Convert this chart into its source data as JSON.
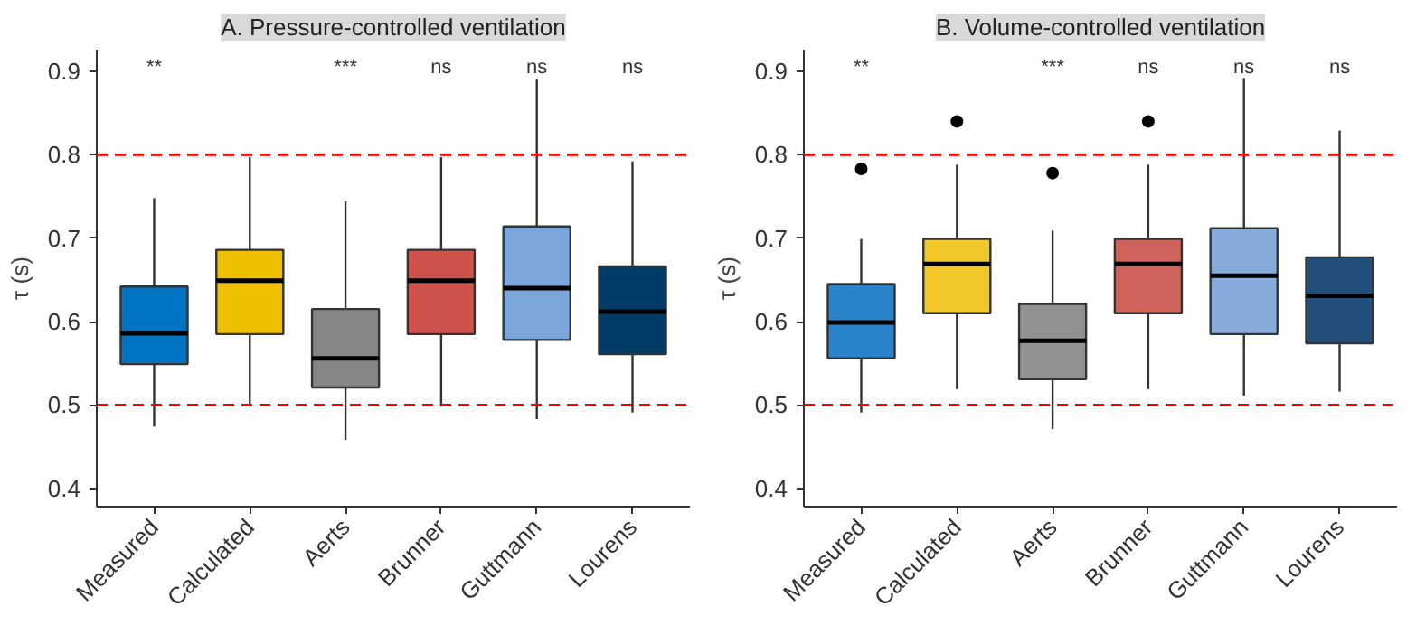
{
  "chart_data": [
    {
      "type": "box",
      "title": "A. Pressure-controlled ventilation",
      "ylabel": "τ (s)",
      "categories": [
        "Measured",
        "Calculated",
        "Aerts",
        "Brunner",
        "Guttmann",
        "Lourens"
      ],
      "colors": [
        "#0073c2",
        "#efc000",
        "#868686",
        "#cd534c",
        "#7aa6dc",
        "#003c67"
      ],
      "boxes": [
        {
          "low": 0.474,
          "q1": 0.549,
          "median": 0.586,
          "q3": 0.642,
          "high": 0.748
        },
        {
          "low": 0.498,
          "q1": 0.585,
          "median": 0.649,
          "q3": 0.686,
          "high": 0.797
        },
        {
          "low": 0.458,
          "q1": 0.521,
          "median": 0.556,
          "q3": 0.615,
          "high": 0.744
        },
        {
          "low": 0.498,
          "q1": 0.585,
          "median": 0.649,
          "q3": 0.686,
          "high": 0.797
        },
        {
          "low": 0.483,
          "q1": 0.578,
          "median": 0.64,
          "q3": 0.714,
          "high": 0.89
        },
        {
          "low": 0.491,
          "q1": 0.561,
          "median": 0.612,
          "q3": 0.666,
          "high": 0.792
        }
      ],
      "ylim": [
        0.378,
        0.926
      ],
      "yticks": [
        0.4,
        0.5,
        0.6,
        0.7,
        0.8,
        0.9
      ],
      "ref_lines": [
        {
          "axis": "y",
          "value": 0.5,
          "color": "#ff0000",
          "line_style": "dashed"
        },
        {
          "axis": "y",
          "value": 0.8,
          "color": "#ff0000",
          "line_style": "dashed"
        }
      ],
      "annotations": [
        "**",
        "***",
        "ns",
        "ns",
        "ns"
      ],
      "grid": false
    },
    {
      "type": "box",
      "title": "B. Volume-controlled ventilation",
      "ylabel": "τ (s)",
      "categories": [
        "Measured",
        "Calculated",
        "Aerts",
        "Brunner",
        "Guttmann",
        "Lourens"
      ],
      "colors": [
        "#2a84cc",
        "#f2c72a",
        "#929292",
        "#d2625c",
        "#87acdb",
        "#22507a"
      ],
      "boxes": [
        {
          "low": 0.491,
          "q1": 0.556,
          "median": 0.599,
          "q3": 0.645,
          "high": 0.699,
          "outliers": [
            0.783
          ]
        },
        {
          "low": 0.519,
          "q1": 0.61,
          "median": 0.669,
          "q3": 0.699,
          "high": 0.788,
          "outliers": [
            0.84
          ]
        },
        {
          "low": 0.471,
          "q1": 0.531,
          "median": 0.577,
          "q3": 0.621,
          "high": 0.709,
          "outliers": [
            0.778
          ]
        },
        {
          "low": 0.519,
          "q1": 0.61,
          "median": 0.669,
          "q3": 0.699,
          "high": 0.788,
          "outliers": [
            0.84
          ]
        },
        {
          "low": 0.511,
          "q1": 0.585,
          "median": 0.655,
          "q3": 0.712,
          "high": 0.892
        },
        {
          "low": 0.516,
          "q1": 0.574,
          "median": 0.631,
          "q3": 0.677,
          "high": 0.829
        }
      ],
      "ylim": [
        0.378,
        0.926
      ],
      "yticks": [
        0.4,
        0.5,
        0.6,
        0.7,
        0.8,
        0.9
      ],
      "ref_lines": [
        {
          "axis": "y",
          "value": 0.5,
          "color": "#ff0000",
          "line_style": "dashed"
        },
        {
          "axis": "y",
          "value": 0.8,
          "color": "#ff0000",
          "line_style": "dashed"
        }
      ],
      "annotations": [
        "**",
        "***",
        "ns",
        "ns",
        "ns"
      ],
      "grid": false
    }
  ]
}
